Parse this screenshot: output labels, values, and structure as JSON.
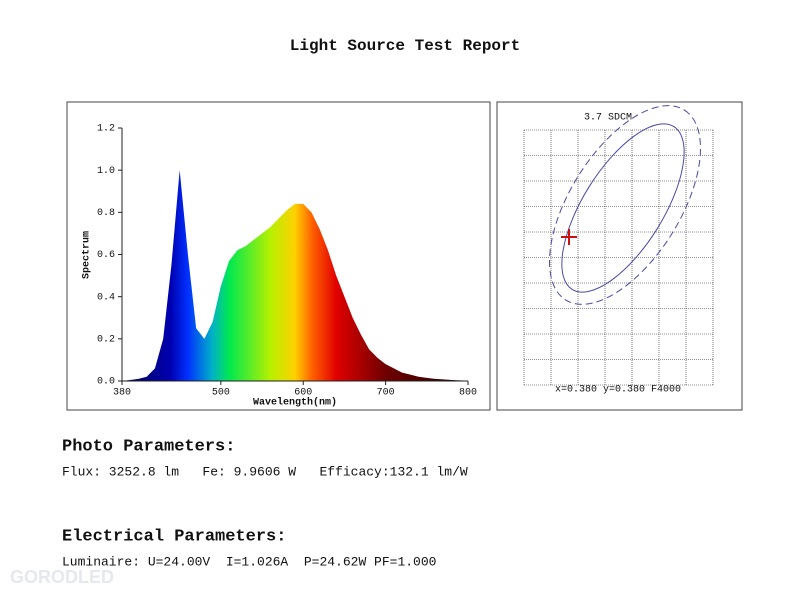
{
  "title": "Light Source Test Report",
  "chart_data": [
    {
      "type": "area",
      "xlabel": "Wavelength(nm)",
      "ylabel": "Spectrum",
      "x": [
        380,
        390,
        400,
        410,
        420,
        430,
        440,
        450,
        460,
        470,
        480,
        490,
        500,
        510,
        520,
        530,
        540,
        550,
        560,
        570,
        580,
        590,
        600,
        610,
        620,
        630,
        640,
        650,
        660,
        670,
        680,
        690,
        700,
        710,
        720,
        730,
        740,
        750,
        760,
        770,
        780,
        790,
        800
      ],
      "values": [
        0,
        0.005,
        0.01,
        0.02,
        0.06,
        0.2,
        0.55,
        1.0,
        0.6,
        0.25,
        0.2,
        0.28,
        0.45,
        0.57,
        0.62,
        0.64,
        0.67,
        0.7,
        0.73,
        0.77,
        0.81,
        0.84,
        0.84,
        0.8,
        0.72,
        0.62,
        0.5,
        0.4,
        0.3,
        0.22,
        0.15,
        0.11,
        0.08,
        0.06,
        0.04,
        0.03,
        0.02,
        0.015,
        0.01,
        0.008,
        0.005,
        0.003,
        0.002
      ],
      "xlim": [
        380,
        800
      ],
      "xticks": [
        380,
        500,
        600,
        700,
        800
      ],
      "ylim": [
        0,
        1.2
      ],
      "yticks": [
        {
          "value": 0,
          "label": "0.0"
        },
        0.2,
        0.4,
        0.6,
        0.8,
        {
          "value": 1,
          "label": "1.0"
        },
        1.2
      ]
    },
    {
      "type": "chromaticity",
      "sdcm_label": "3.7 SDCM",
      "coordinates_label": "x=0.380 y=0.380 F4000"
    }
  ],
  "photo": {
    "heading": "Photo Parameters:",
    "line": "Flux: 3252.8 lm   Fe: 9.9606 W   Efficacy:132.1 lm/W"
  },
  "electrical": {
    "heading": "Electrical Parameters:",
    "line": "Luminaire: U=24.00V  I=1.026A  P=24.62W PF=1.000"
  },
  "watermark": "GORODLED"
}
